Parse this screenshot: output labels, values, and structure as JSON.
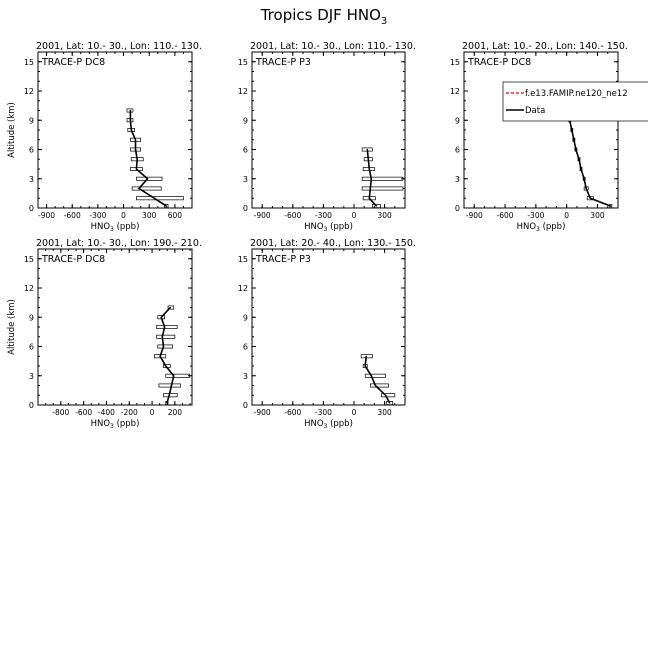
{
  "page": {
    "title_main": "Tropics DJF HNO",
    "title_sub": "3"
  },
  "legend": {
    "model_label": "f.e13.FAMIP.ne120_ne12",
    "data_label": "Data"
  },
  "chart_data": [
    {
      "type": "line",
      "header": "2001, Lat: 10.- 30., Lon: 110.- 130.",
      "campaign": "TRACE-P DC8",
      "xlabel": "HNO",
      "xlabel_sub": "3",
      "xlabel_unit": " (ppb)",
      "ylabel": "Altitude (km)",
      "xlim": [
        -1000,
        800
      ],
      "ylim": [
        0,
        16
      ],
      "xticks": [
        -900,
        -600,
        -300,
        0,
        300,
        600
      ],
      "yticks": [
        0,
        3,
        6,
        9,
        12,
        15
      ],
      "series": [
        {
          "name": "Data",
          "y": [
            0.2,
            1,
            2,
            3,
            4,
            5,
            6,
            7,
            8,
            9,
            10
          ],
          "x": [
            500,
            360,
            180,
            280,
            150,
            160,
            140,
            140,
            90,
            80,
            80
          ],
          "err": [
            [
              480,
              520
            ],
            [
              150,
              700
            ],
            [
              100,
              440
            ],
            [
              150,
              450
            ],
            [
              80,
              220
            ],
            [
              90,
              230
            ],
            [
              80,
              200
            ],
            [
              80,
              200
            ],
            [
              50,
              130
            ],
            [
              40,
              110
            ],
            [
              40,
              110
            ]
          ]
        }
      ]
    },
    {
      "type": "line",
      "header": "2001, Lat: 10.- 30., Lon: 110.- 130.",
      "campaign": "TRACE-P P3",
      "xlabel": "HNO",
      "xlabel_sub": "3",
      "xlabel_unit": " (ppb)",
      "ylabel": "",
      "xlim": [
        -1000,
        500
      ],
      "ylim": [
        0,
        16
      ],
      "xticks": [
        -900,
        -600,
        -300,
        0,
        300
      ],
      "yticks": [
        0,
        3,
        6,
        9,
        12,
        15
      ],
      "series": [
        {
          "name": "Data",
          "y": [
            0.2,
            1,
            2,
            3,
            4,
            5,
            6
          ],
          "x": [
            220,
            150,
            160,
            170,
            150,
            140,
            130
          ],
          "err": [
            [
              180,
              260
            ],
            [
              90,
              210
            ],
            [
              80,
              480
            ],
            [
              80,
              480
            ],
            [
              90,
              200
            ],
            [
              100,
              180
            ],
            [
              80,
              180
            ]
          ]
        }
      ]
    },
    {
      "type": "line",
      "header": "2001, Lat: 10.- 20., Lon: 140.- 150.",
      "campaign": "TRACE-P DC8",
      "xlabel": "HNO",
      "xlabel_sub": "3",
      "xlabel_unit": " (ppb)",
      "ylabel": "",
      "xlim": [
        -1000,
        500
      ],
      "ylim": [
        0,
        16
      ],
      "xticks": [
        -900,
        -600,
        -300,
        0,
        300
      ],
      "yticks": [
        0,
        3,
        6,
        9,
        12,
        15
      ],
      "series": [
        {
          "name": "Data",
          "y": [
            0.2,
            1,
            2,
            3,
            4,
            5,
            6,
            7,
            8,
            9,
            10
          ],
          "x": [
            430,
            230,
            190,
            170,
            140,
            120,
            90,
            70,
            50,
            30,
            40
          ],
          "err": [
            [
              420,
              440
            ],
            [
              200,
              260
            ],
            [
              170,
              210
            ],
            [
              160,
              180
            ],
            [
              130,
              150
            ],
            [
              110,
              130
            ],
            [
              80,
              100
            ],
            [
              60,
              80
            ],
            [
              40,
              60
            ],
            [
              20,
              40
            ],
            [
              30,
              50
            ]
          ]
        }
      ],
      "has_legend": true
    },
    {
      "type": "line",
      "header": "2001, Lat: 10.- 30., Lon: 190.- 210.",
      "campaign": "TRACE-P DC8",
      "xlabel": "HNO",
      "xlabel_sub": "3",
      "xlabel_unit": " (ppb)",
      "ylabel": "Altitude (km)",
      "xlim": [
        -1000,
        350
      ],
      "ylim": [
        0,
        16
      ],
      "xticks": [
        -800,
        -600,
        -400,
        -200,
        0,
        200
      ],
      "yticks": [
        0,
        3,
        6,
        9,
        12,
        15
      ],
      "series": [
        {
          "name": "Data",
          "y": [
            0.2,
            1,
            2,
            3,
            4,
            5,
            6,
            7,
            8,
            9,
            10
          ],
          "x": [
            130,
            150,
            170,
            190,
            120,
            70,
            100,
            90,
            110,
            80,
            160
          ],
          "err": [
            [
              120,
              140
            ],
            [
              100,
              220
            ],
            [
              60,
              250
            ],
            [
              120,
              330
            ],
            [
              100,
              160
            ],
            [
              20,
              120
            ],
            [
              50,
              180
            ],
            [
              40,
              200
            ],
            [
              40,
              220
            ],
            [
              50,
              110
            ],
            [
              140,
              190
            ]
          ]
        }
      ]
    },
    {
      "type": "line",
      "header": "2001, Lat: 20.- 40., Lon: 130.- 150.",
      "campaign": "TRACE-P P3",
      "xlabel": "HNO",
      "xlabel_sub": "3",
      "xlabel_unit": " (ppb)",
      "ylabel": "",
      "xlim": [
        -1000,
        500
      ],
      "ylim": [
        0,
        16
      ],
      "xticks": [
        -900,
        -600,
        -300,
        0,
        300
      ],
      "yticks": [
        0,
        3,
        6,
        9,
        12,
        15
      ],
      "series": [
        {
          "name": "Data",
          "y": [
            0.2,
            1,
            2,
            3,
            4,
            5
          ],
          "x": [
            350,
            310,
            210,
            170,
            110,
            120
          ],
          "err": [
            [
              320,
              380
            ],
            [
              270,
              400
            ],
            [
              160,
              340
            ],
            [
              110,
              310
            ],
            [
              90,
              130
            ],
            [
              70,
              180
            ]
          ]
        }
      ]
    }
  ]
}
